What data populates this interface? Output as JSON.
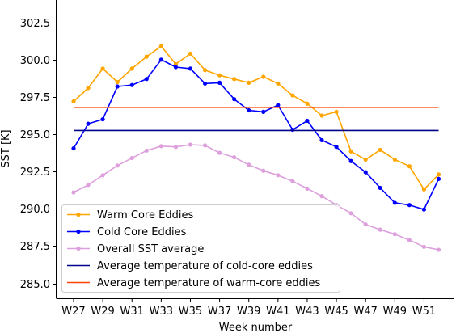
{
  "chart_data": {
    "type": "line",
    "xlabel": "Week number",
    "ylabel": "SST [K]",
    "x": [
      "W27",
      "W28",
      "W29",
      "W30",
      "W31",
      "W32",
      "W33",
      "W34",
      "W35",
      "W36",
      "W37",
      "W38",
      "W39",
      "W40",
      "W41",
      "W42",
      "W43",
      "W44",
      "W45",
      "W46",
      "W47",
      "W48",
      "W49",
      "W50",
      "W51",
      "W52"
    ],
    "xtick_labels": [
      "W27",
      "W29",
      "W31",
      "W33",
      "W35",
      "W37",
      "W39",
      "W41",
      "W43",
      "W45",
      "W47",
      "W49",
      "W51"
    ],
    "ylim": [
      284.0,
      304.0
    ],
    "yticks": [
      285.0,
      287.5,
      290.0,
      292.5,
      295.0,
      297.5,
      300.0,
      302.5
    ],
    "ytick_labels": [
      "285.0",
      "287.5",
      "290.0",
      "292.5",
      "295.0",
      "297.5",
      "300.0",
      "302.5"
    ],
    "grid": false,
    "legend_position": "bottom-left",
    "series": [
      {
        "name": "Warm Core Eddies",
        "color": "#ffa500",
        "style": "line-marker",
        "values": [
          297.2,
          298.1,
          299.4,
          298.5,
          299.4,
          300.2,
          300.9,
          299.7,
          300.4,
          299.3,
          298.95,
          298.7,
          298.45,
          298.85,
          298.4,
          297.6,
          297.05,
          296.25,
          296.5,
          293.85,
          293.3,
          293.95,
          293.3,
          292.85,
          291.3,
          292.3
        ]
      },
      {
        "name": "Cold Core Eddies",
        "color": "#0000ff",
        "style": "line-marker",
        "values": [
          294.05,
          295.7,
          296.0,
          298.2,
          298.3,
          298.7,
          300.0,
          299.5,
          299.4,
          298.4,
          298.45,
          297.35,
          296.6,
          296.5,
          296.95,
          295.3,
          295.9,
          294.6,
          294.15,
          293.2,
          292.45,
          291.4,
          290.4,
          290.25,
          289.95,
          292.0
        ]
      },
      {
        "name": "Overall SST average",
        "color": "#dda0dd",
        "style": "line-marker",
        "values": [
          291.1,
          291.6,
          292.25,
          292.9,
          293.4,
          293.9,
          294.2,
          294.15,
          294.3,
          294.25,
          293.75,
          293.45,
          292.95,
          292.55,
          292.25,
          291.85,
          291.35,
          290.85,
          290.25,
          289.7,
          288.95,
          288.6,
          288.3,
          287.9,
          287.45,
          287.25
        ]
      },
      {
        "name": "Average temperature of cold-core eddies",
        "color": "#00008b",
        "style": "line",
        "values": [
          295.25,
          295.25,
          295.25,
          295.25,
          295.25,
          295.25,
          295.25,
          295.25,
          295.25,
          295.25,
          295.25,
          295.25,
          295.25,
          295.25,
          295.25,
          295.25,
          295.25,
          295.25,
          295.25,
          295.25,
          295.25,
          295.25,
          295.25,
          295.25,
          295.25,
          295.25
        ]
      },
      {
        "name": "Average temperature of warm-core eddies",
        "color": "#ff4500",
        "style": "line",
        "values": [
          296.8,
          296.8,
          296.8,
          296.8,
          296.8,
          296.8,
          296.8,
          296.8,
          296.8,
          296.8,
          296.8,
          296.8,
          296.8,
          296.8,
          296.8,
          296.8,
          296.8,
          296.8,
          296.8,
          296.8,
          296.8,
          296.8,
          296.8,
          296.8,
          296.8,
          296.8
        ]
      }
    ]
  }
}
